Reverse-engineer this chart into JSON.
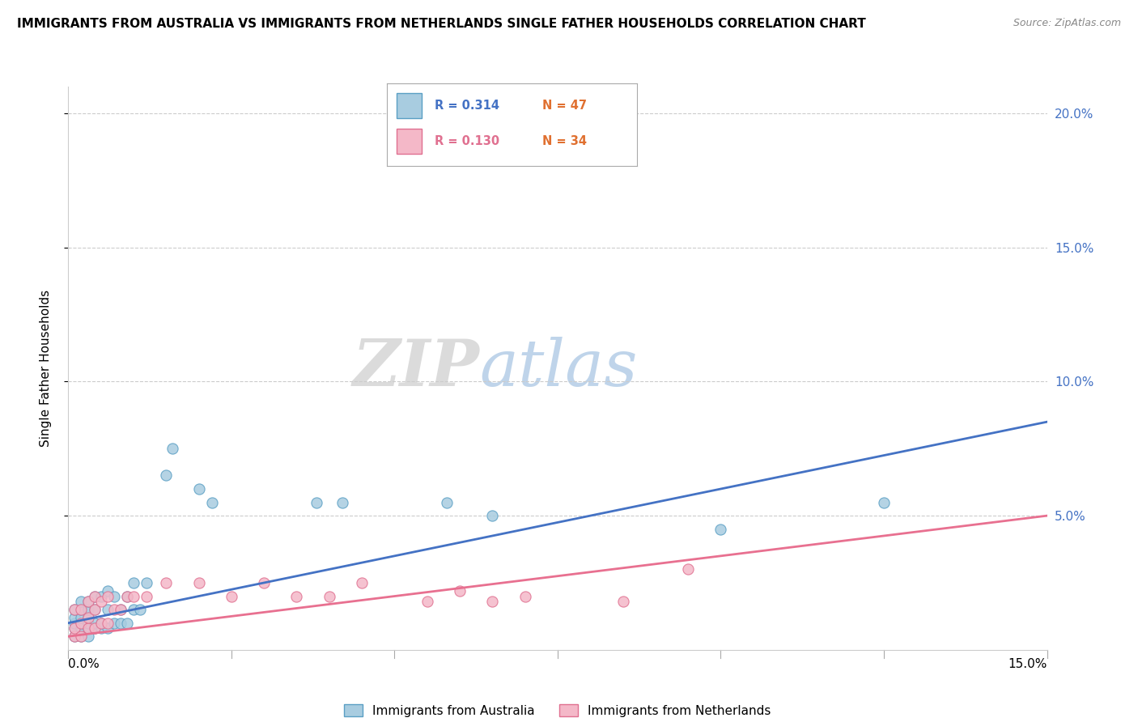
{
  "title": "IMMIGRANTS FROM AUSTRALIA VS IMMIGRANTS FROM NETHERLANDS SINGLE FATHER HOUSEHOLDS CORRELATION CHART",
  "source": "Source: ZipAtlas.com",
  "ylabel": "Single Father Households",
  "xlim": [
    0.0,
    0.15
  ],
  "ylim": [
    0.0,
    0.21
  ],
  "yticks": [
    0.05,
    0.1,
    0.15,
    0.2
  ],
  "ytick_labels": [
    "5.0%",
    "10.0%",
    "15.0%",
    "20.0%"
  ],
  "watermark_zip": "ZIP",
  "watermark_atlas": "atlas",
  "legend_R1": "R = 0.314",
  "legend_N1": "N = 47",
  "legend_R2": "R = 0.130",
  "legend_N2": "N = 34",
  "color_blue": "#a8cce0",
  "color_blue_edge": "#5a9fc4",
  "color_pink": "#f4b8c8",
  "color_pink_edge": "#e07090",
  "color_line_blue": "#4472c4",
  "color_line_pink": "#e87090",
  "aus_label": "Immigrants from Australia",
  "net_label": "Immigrants from Netherlands",
  "australia_x": [
    0.001,
    0.001,
    0.001,
    0.001,
    0.001,
    0.002,
    0.002,
    0.002,
    0.002,
    0.002,
    0.002,
    0.003,
    0.003,
    0.003,
    0.003,
    0.003,
    0.003,
    0.004,
    0.004,
    0.004,
    0.004,
    0.005,
    0.005,
    0.005,
    0.006,
    0.006,
    0.006,
    0.007,
    0.007,
    0.008,
    0.008,
    0.009,
    0.009,
    0.01,
    0.01,
    0.011,
    0.012,
    0.015,
    0.016,
    0.02,
    0.022,
    0.038,
    0.042,
    0.058,
    0.065,
    0.1,
    0.125
  ],
  "australia_y": [
    0.005,
    0.008,
    0.01,
    0.012,
    0.015,
    0.005,
    0.008,
    0.01,
    0.012,
    0.015,
    0.018,
    0.005,
    0.008,
    0.01,
    0.012,
    0.015,
    0.018,
    0.008,
    0.01,
    0.015,
    0.02,
    0.008,
    0.01,
    0.02,
    0.008,
    0.015,
    0.022,
    0.01,
    0.02,
    0.01,
    0.015,
    0.01,
    0.02,
    0.015,
    0.025,
    0.015,
    0.025,
    0.065,
    0.075,
    0.06,
    0.055,
    0.055,
    0.055,
    0.055,
    0.05,
    0.045,
    0.055
  ],
  "netherlands_x": [
    0.001,
    0.001,
    0.001,
    0.002,
    0.002,
    0.002,
    0.003,
    0.003,
    0.003,
    0.004,
    0.004,
    0.004,
    0.005,
    0.005,
    0.006,
    0.006,
    0.007,
    0.008,
    0.009,
    0.01,
    0.012,
    0.015,
    0.02,
    0.025,
    0.03,
    0.035,
    0.04,
    0.045,
    0.055,
    0.06,
    0.065,
    0.07,
    0.085,
    0.095
  ],
  "netherlands_y": [
    0.005,
    0.008,
    0.015,
    0.005,
    0.01,
    0.015,
    0.008,
    0.012,
    0.018,
    0.008,
    0.015,
    0.02,
    0.01,
    0.018,
    0.01,
    0.02,
    0.015,
    0.015,
    0.02,
    0.02,
    0.02,
    0.025,
    0.025,
    0.02,
    0.025,
    0.02,
    0.02,
    0.025,
    0.018,
    0.022,
    0.018,
    0.02,
    0.018,
    0.03
  ]
}
